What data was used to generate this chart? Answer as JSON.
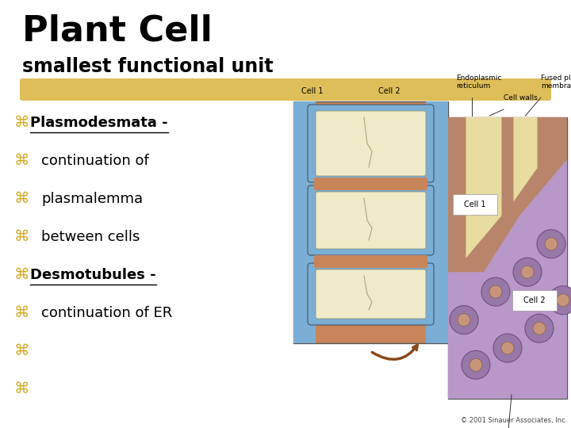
{
  "title": "Plant Cell",
  "subtitle": "smallest functional unit",
  "title_fontsize": 32,
  "subtitle_fontsize": 17,
  "title_color": "#000000",
  "subtitle_color": "#000000",
  "background_color": "#ffffff",
  "highlight_color": "#D4A820",
  "bullet_color": "#D4A820",
  "bullet_char": "⌘",
  "bullet_fontsize": 14,
  "text_fontsize": 13,
  "bullet_lines": [
    {
      "text": "Plasmodesmata -",
      "bold": true,
      "underline": true,
      "indent": 0
    },
    {
      "text": "continuation of",
      "bold": false,
      "underline": false,
      "indent": 1
    },
    {
      "text": "plasmalemma",
      "bold": false,
      "underline": false,
      "indent": 1
    },
    {
      "text": "between cells",
      "bold": false,
      "underline": false,
      "indent": 1
    },
    {
      "text": "Desmotubules -",
      "bold": true,
      "underline": true,
      "indent": 0
    },
    {
      "text": "continuation of ER",
      "bold": false,
      "underline": false,
      "indent": 1
    },
    {
      "text": "",
      "bold": false,
      "underline": false,
      "indent": 0
    },
    {
      "text": "",
      "bold": false,
      "underline": false,
      "indent": 0
    }
  ],
  "copyright_text": "© 2001 Sinauer Associates, Inc.",
  "copyright_fontsize": 6,
  "copyright_color": "#444444"
}
